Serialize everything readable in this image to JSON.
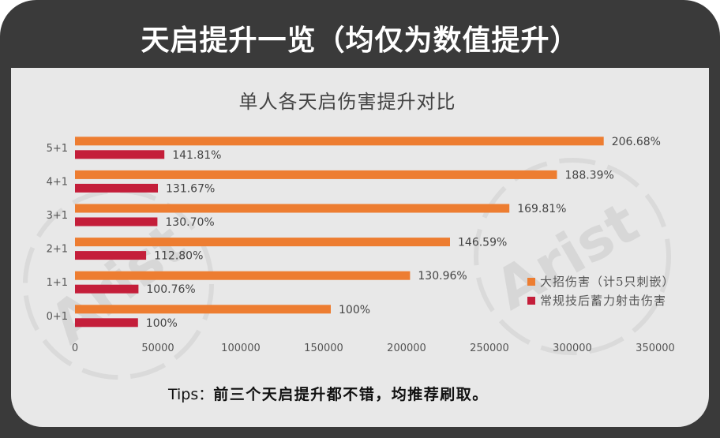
{
  "header": {
    "title": "天启提升一览（均仅为数值提升）"
  },
  "chart_data": {
    "type": "bar",
    "orientation": "horizontal",
    "title": "单人各天启伤害提升对比",
    "xlabel": "",
    "ylabel": "",
    "categories": [
      "5+1",
      "4+1",
      "3+1",
      "2+1",
      "1+1",
      "0+1"
    ],
    "xlim": [
      0,
      350000
    ],
    "xticks": [
      0,
      50000,
      100000,
      150000,
      200000,
      250000,
      300000,
      350000
    ],
    "grid": false,
    "legend": "right",
    "series": [
      {
        "name": "大招伤害（计5只刺嵌）",
        "color": "#ed7d31",
        "values": [
          318900,
          290700,
          262000,
          226200,
          202100,
          154300
        ],
        "labels": [
          "206.68%",
          "188.39%",
          "169.81%",
          "146.59%",
          "130.96%",
          "100%"
        ]
      },
      {
        "name": "常规技后蓄力射击伤害",
        "color": "#c41e3a",
        "values": [
          53900,
          50000,
          49700,
          42900,
          38300,
          38000
        ],
        "labels": [
          "141.81%",
          "131.67%",
          "130.70%",
          "112.80%",
          "100.76%",
          "100%"
        ]
      }
    ]
  },
  "tips": {
    "label": "Tips：",
    "text": "前三个天启提升都不错，均推荐刷取。"
  },
  "watermark": {
    "text": "Arist"
  },
  "colors": {
    "frame": "#3a3a3a",
    "panel": "#e8e8e8"
  }
}
